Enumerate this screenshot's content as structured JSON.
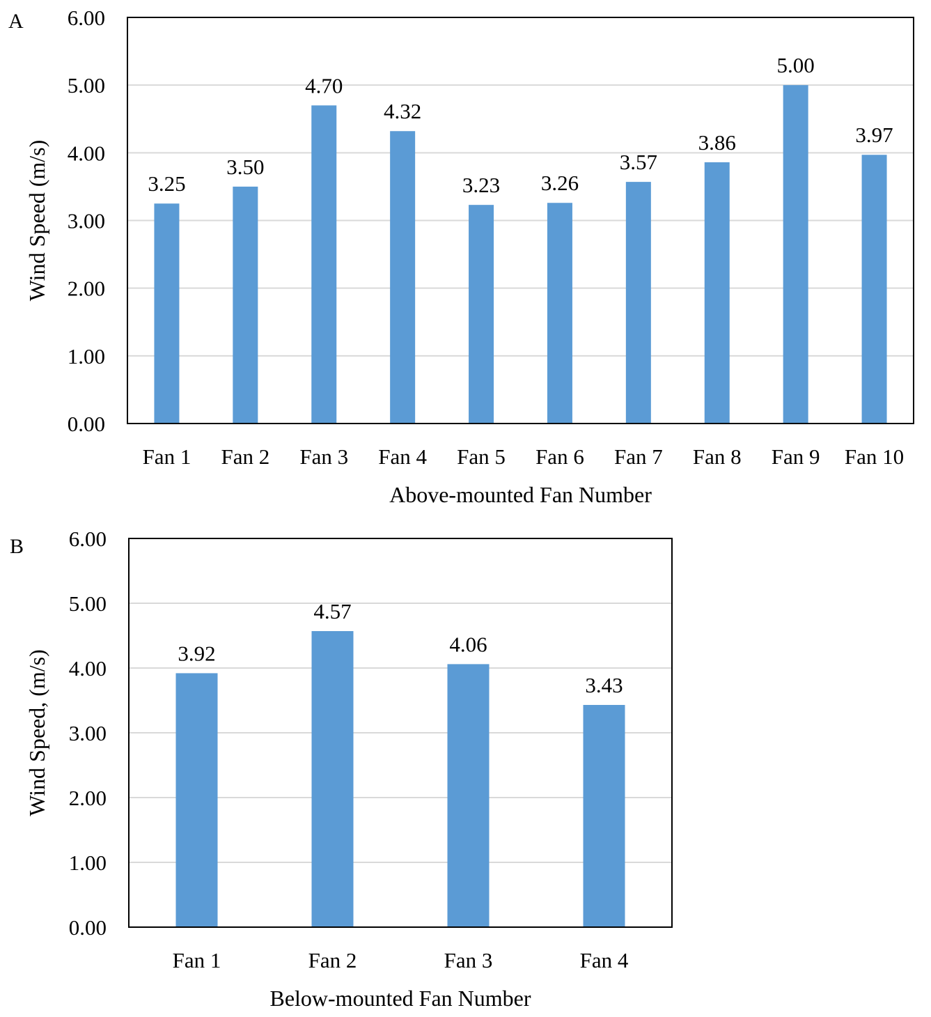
{
  "chart_data": [
    {
      "panel_label": "A",
      "type": "bar",
      "categories": [
        "Fan 1",
        "Fan 2",
        "Fan 3",
        "Fan 4",
        "Fan 5",
        "Fan 6",
        "Fan 7",
        "Fan 8",
        "Fan 9",
        "Fan 10"
      ],
      "values": [
        3.25,
        3.5,
        4.7,
        4.32,
        3.23,
        3.26,
        3.57,
        3.86,
        5.0,
        3.97
      ],
      "data_labels": [
        "3.25",
        "3.50",
        "4.70",
        "4.32",
        "3.23",
        "3.26",
        "3.57",
        "3.86",
        "5.00",
        "3.97"
      ],
      "xlabel": "Above-mounted Fan Number",
      "ylabel": "Wind Speed (m/s)",
      "ylim": [
        0,
        6
      ],
      "yticks": [
        "0.00",
        "1.00",
        "2.00",
        "3.00",
        "4.00",
        "5.00",
        "6.00"
      ],
      "grid": true,
      "bar_color": "#5b9bd5"
    },
    {
      "panel_label": "B",
      "type": "bar",
      "categories": [
        "Fan 1",
        "Fan 2",
        "Fan 3",
        "Fan 4"
      ],
      "values": [
        3.92,
        4.57,
        4.06,
        3.43
      ],
      "data_labels": [
        "3.92",
        "4.57",
        "4.06",
        "3.43"
      ],
      "xlabel": "Below-mounted Fan Number",
      "ylabel": "Wind Speed, (m/s)",
      "ylim": [
        0,
        6
      ],
      "yticks": [
        "0.00",
        "1.00",
        "2.00",
        "3.00",
        "4.00",
        "5.00",
        "6.00"
      ],
      "grid": true,
      "bar_color": "#5b9bd5"
    }
  ]
}
